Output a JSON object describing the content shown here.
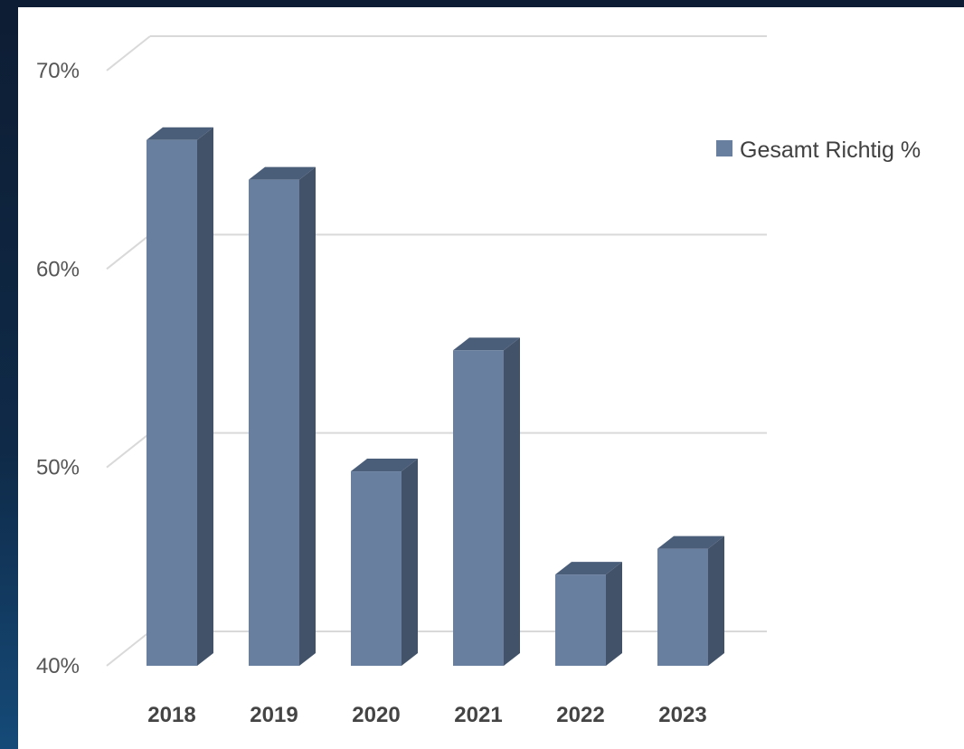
{
  "chart_data": {
    "type": "bar",
    "categories": [
      "2018",
      "2019",
      "2020",
      "2021",
      "2022",
      "2023"
    ],
    "series": [
      {
        "name": "Gesamt Richtig %",
        "values": [
          66.5,
          64.5,
          49.8,
          55.9,
          44.6,
          45.9
        ]
      }
    ],
    "yticks": [
      "40%",
      "50%",
      "60%",
      "70%"
    ],
    "ylim": [
      40,
      70
    ],
    "grid": true,
    "legend_position": "right",
    "colors": {
      "front": "#697f9f",
      "side": "#415269",
      "top": "#4b5e79",
      "grid": "#d9d9d9",
      "axis": "#bfbfbf"
    }
  }
}
